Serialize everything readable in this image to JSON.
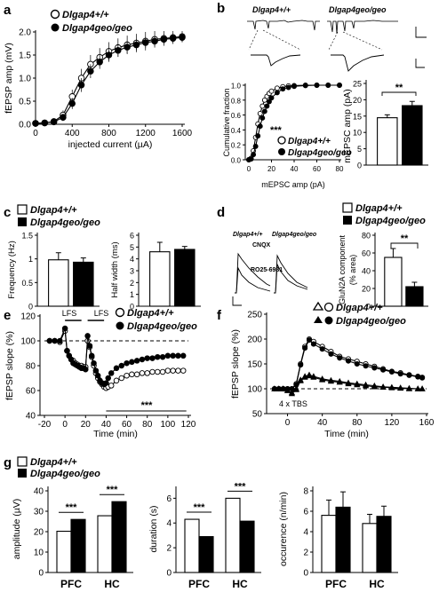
{
  "figure": {
    "genotypes": {
      "wt": "Dlgap4+/+",
      "ko": "Dlgap4geo/geo"
    },
    "panel_labels": [
      "a",
      "b",
      "c",
      "d",
      "e",
      "f",
      "g"
    ],
    "colors": {
      "wt_fill": "#ffffff",
      "ko_fill": "#000000",
      "line": "#000000",
      "grid": "#999999"
    }
  },
  "panel_a": {
    "ylabel": "fEPSP amp (mV)",
    "xlabel": "injected current (µA)",
    "xticks": [
      "0",
      "400",
      "800",
      "1200",
      "1600"
    ],
    "yticks": [
      "0.0",
      "0.5",
      "1.0",
      "1.5",
      "2.0"
    ]
  },
  "panel_b": {
    "cum_ylabel": "Cumulative fraction",
    "cum_xlabel": "mEPSC amp (pA)",
    "cum_xticks": [
      "0",
      "20",
      "40",
      "60",
      "80"
    ],
    "cum_yticks": [
      "0.0",
      "0.2",
      "0.4",
      "0.6",
      "0.8",
      "1.0"
    ],
    "cum_sig": "***",
    "bar_ylabel": "mEPSC amp (pA)",
    "bar_yticks": [
      "0",
      "5",
      "10",
      "15",
      "20",
      "25"
    ],
    "bar_sig": "**"
  },
  "panel_c": {
    "freq_ylabel": "Frequency (Hz)",
    "freq_yticks": [
      "0",
      "0.5",
      "1",
      "1.5"
    ],
    "hw_ylabel": "Half width (ms)",
    "hw_yticks": [
      "0",
      "1",
      "2",
      "3",
      "4",
      "5",
      "6"
    ]
  },
  "panel_d": {
    "trace_label_1": "CNQX",
    "trace_label_2": "RO25-6981",
    "ylabel_1": "GluN2A component",
    "ylabel_2": "(% area)",
    "yticks": [
      "0",
      "20",
      "40",
      "60",
      "80"
    ],
    "sig": "**"
  },
  "panel_e": {
    "ylabel": "fEPSP slope (%)",
    "xlabel": "Time (min)",
    "xticks": [
      "-20",
      "0",
      "20",
      "40",
      "60",
      "80",
      "100",
      "120"
    ],
    "yticks": [
      "40",
      "60",
      "80",
      "100",
      "120"
    ],
    "stim1": "LFS",
    "stim2": "LFS",
    "sig": "***"
  },
  "panel_f": {
    "ylabel": "fEPSP slope (%)",
    "xlabel": "Time (min)",
    "xticks": [
      "0",
      "40",
      "80",
      "120",
      "160"
    ],
    "yticks": [
      "50",
      "100",
      "150",
      "200",
      "250"
    ],
    "stim": "4 x TBS"
  },
  "panel_g": {
    "amp_ylabel": "amplitude (µV)",
    "amp_yticks": [
      "0",
      "10",
      "20",
      "30",
      "40"
    ],
    "dur_ylabel": "duration  (s)",
    "dur_yticks": [
      "0",
      "2",
      "4",
      "6"
    ],
    "occ_ylabel": "occurence (n/min)",
    "occ_yticks": [
      "0",
      "2",
      "4",
      "6",
      "8"
    ],
    "groups": [
      "PFC",
      "HC"
    ],
    "sig": "***"
  },
  "chart_data": [
    {
      "id": "a",
      "type": "line",
      "xlabel": "injected current (µA)",
      "ylabel": "fEPSP amp (mV)",
      "xlim": [
        0,
        1600
      ],
      "ylim": [
        0,
        2.0
      ],
      "x": [
        0,
        100,
        200,
        300,
        400,
        500,
        600,
        700,
        800,
        900,
        1000,
        1100,
        1200,
        1300,
        1400,
        1500,
        1600
      ],
      "series": [
        {
          "name": "Dlgap4+/+",
          "values": [
            0.02,
            0.03,
            0.06,
            0.2,
            0.6,
            1.0,
            1.3,
            1.45,
            1.58,
            1.66,
            1.72,
            1.76,
            1.8,
            1.84,
            1.86,
            1.88,
            1.9
          ],
          "err": [
            0.02,
            0.03,
            0.05,
            0.1,
            0.15,
            0.2,
            0.2,
            0.2,
            0.2,
            0.2,
            0.2,
            0.2,
            0.2,
            0.18,
            0.16,
            0.14,
            0.12
          ]
        },
        {
          "name": "Dlgap4geo/geo",
          "values": [
            0.02,
            0.03,
            0.05,
            0.15,
            0.45,
            0.85,
            1.15,
            1.35,
            1.5,
            1.6,
            1.67,
            1.72,
            1.77,
            1.8,
            1.84,
            1.86,
            1.88
          ],
          "err": [
            0.02,
            0.03,
            0.04,
            0.08,
            0.12,
            0.15,
            0.15,
            0.15,
            0.15,
            0.14,
            0.13,
            0.12,
            0.12,
            0.11,
            0.1,
            0.1,
            0.1
          ]
        }
      ]
    },
    {
      "id": "b-cumulative",
      "type": "line",
      "xlabel": "mEPSC amp (pA)",
      "ylabel": "Cumulative fraction",
      "xlim": [
        0,
        80
      ],
      "ylim": [
        0,
        1.0
      ],
      "x": [
        0,
        2,
        4,
        6,
        8,
        10,
        12,
        14,
        16,
        18,
        20,
        25,
        30,
        35,
        40,
        50,
        60,
        70,
        80
      ],
      "series": [
        {
          "name": "Dlgap4+/+",
          "values": [
            0,
            0.02,
            0.12,
            0.3,
            0.48,
            0.62,
            0.72,
            0.8,
            0.85,
            0.89,
            0.92,
            0.96,
            0.98,
            0.99,
            0.995,
            1,
            1,
            1,
            1
          ]
        },
        {
          "name": "Dlgap4geo/geo",
          "values": [
            0,
            0.01,
            0.07,
            0.18,
            0.32,
            0.45,
            0.56,
            0.65,
            0.72,
            0.78,
            0.83,
            0.9,
            0.95,
            0.97,
            0.985,
            0.995,
            1,
            1,
            1
          ]
        }
      ]
    },
    {
      "id": "b-bar",
      "type": "bar",
      "ylabel": "mEPSC amp (pA)",
      "ylim": [
        0,
        25
      ],
      "categories": [
        "Dlgap4+/+",
        "Dlgap4geo/geo"
      ],
      "values": [
        14.5,
        18.2
      ],
      "err": [
        0.9,
        1.3
      ]
    },
    {
      "id": "c-frequency",
      "type": "bar",
      "ylabel": "Frequency (Hz)",
      "ylim": [
        0,
        1.5
      ],
      "categories": [
        "Dlgap4+/+",
        "Dlgap4geo/geo"
      ],
      "values": [
        0.98,
        0.93
      ],
      "err": [
        0.15,
        0.09
      ]
    },
    {
      "id": "c-halfwidth",
      "type": "bar",
      "ylabel": "Half width (ms)",
      "ylim": [
        0,
        6
      ],
      "categories": [
        "Dlgap4+/+",
        "Dlgap4geo/geo"
      ],
      "values": [
        4.6,
        4.8
      ],
      "err": [
        0.8,
        0.25
      ]
    },
    {
      "id": "d-bar",
      "type": "bar",
      "ylabel": "GluN2A component (% area)",
      "ylim": [
        0,
        80
      ],
      "categories": [
        "Dlgap4+/+",
        "Dlgap4geo/geo"
      ],
      "values": [
        55,
        22
      ],
      "err": [
        10,
        5
      ]
    },
    {
      "id": "e",
      "type": "line",
      "xlabel": "Time (min)",
      "ylabel": "fEPSP slope (%)",
      "xlim": [
        -20,
        120
      ],
      "ylim": [
        40,
        120
      ],
      "reference_line": 100,
      "x": [
        -15,
        -10,
        -5,
        0,
        2,
        4,
        6,
        8,
        10,
        12,
        14,
        16,
        18,
        20,
        22,
        24,
        26,
        28,
        30,
        32,
        34,
        36,
        38,
        40,
        42,
        45,
        50,
        55,
        60,
        65,
        70,
        75,
        80,
        85,
        90,
        95,
        100,
        105,
        110,
        115
      ],
      "series": [
        {
          "name": "Dlgap4+/+",
          "values": [
            100,
            100,
            99,
            108,
            92,
            88,
            85,
            84,
            82,
            81,
            80,
            80,
            79,
            79,
            100,
            95,
            87,
            80,
            74,
            70,
            67,
            65,
            63,
            62,
            63,
            64,
            68,
            70,
            72,
            73,
            73,
            74,
            74,
            75,
            75,
            75,
            76,
            76,
            76,
            76
          ]
        },
        {
          "name": "Dlgap4geo/geo",
          "values": [
            100,
            100,
            100,
            110,
            92,
            88,
            85,
            82,
            81,
            80,
            79,
            78,
            78,
            77,
            104,
            96,
            88,
            82,
            76,
            72,
            68,
            66,
            65,
            66,
            70,
            74,
            78,
            80,
            82,
            83,
            84,
            85,
            86,
            86,
            87,
            87,
            88,
            88,
            88,
            88
          ]
        }
      ]
    },
    {
      "id": "f",
      "type": "line",
      "xlabel": "Time (min)",
      "ylabel": "fEPSP slope (%)",
      "xlim": [
        -20,
        160
      ],
      "ylim": [
        50,
        250
      ],
      "reference_line": 100,
      "x": [
        -15,
        -10,
        -5,
        0,
        5,
        10,
        15,
        20,
        25,
        30,
        40,
        50,
        60,
        70,
        80,
        90,
        100,
        110,
        120,
        130,
        140,
        150,
        155
      ],
      "series": [
        {
          "name": "Dlgap4+/+ (○)",
          "values": [
            100,
            100,
            100,
            100,
            100,
            110,
            150,
            185,
            200,
            195,
            185,
            175,
            165,
            160,
            155,
            150,
            145,
            140,
            135,
            132,
            128,
            125,
            123
          ]
        },
        {
          "name": "Dlgap4geo/geo (●)",
          "values": [
            100,
            100,
            100,
            100,
            100,
            108,
            148,
            182,
            198,
            190,
            180,
            170,
            162,
            156,
            150,
            146,
            142,
            138,
            134,
            130,
            127,
            124,
            122
          ]
        },
        {
          "name": "Dlgap4+/+ (△)",
          "values": [
            100,
            100,
            100,
            97,
            92,
            100,
            118,
            125,
            128,
            125,
            120,
            117,
            115,
            112,
            110,
            108,
            106,
            104,
            103,
            102,
            101,
            100,
            100
          ]
        },
        {
          "name": "Dlgap4geo/geo (▲)",
          "values": [
            100,
            100,
            100,
            96,
            90,
            98,
            116,
            123,
            126,
            123,
            118,
            115,
            113,
            110,
            108,
            106,
            104,
            103,
            102,
            101,
            100,
            100,
            100
          ]
        }
      ]
    },
    {
      "id": "g-amplitude",
      "type": "bar",
      "ylabel": "amplitude (µV)",
      "ylim": [
        0,
        40
      ],
      "categories": [
        "PFC",
        "HC"
      ],
      "series": [
        {
          "name": "Dlgap4+/+",
          "values": [
            20.2,
            27.8
          ]
        },
        {
          "name": "Dlgap4geo/geo",
          "values": [
            26.0,
            34.7
          ]
        }
      ]
    },
    {
      "id": "g-duration",
      "type": "bar",
      "ylabel": "duration  (s)",
      "ylim": [
        0,
        6
      ],
      "categories": [
        "PFC",
        "HC"
      ],
      "series": [
        {
          "name": "Dlgap4+/+",
          "values": [
            4.3,
            6.0
          ]
        },
        {
          "name": "Dlgap4geo/geo",
          "values": [
            2.9,
            4.15
          ]
        }
      ]
    },
    {
      "id": "g-occurence",
      "type": "bar",
      "ylabel": "occurence (n/min)",
      "ylim": [
        0,
        8
      ],
      "categories": [
        "PFC",
        "HC"
      ],
      "series": [
        {
          "name": "Dlgap4+/+",
          "values": [
            5.6,
            4.8
          ],
          "err": [
            1.5,
            0.9
          ]
        },
        {
          "name": "Dlgap4geo/geo",
          "values": [
            6.4,
            5.5
          ],
          "err": [
            1.5,
            1.0
          ]
        }
      ]
    }
  ]
}
